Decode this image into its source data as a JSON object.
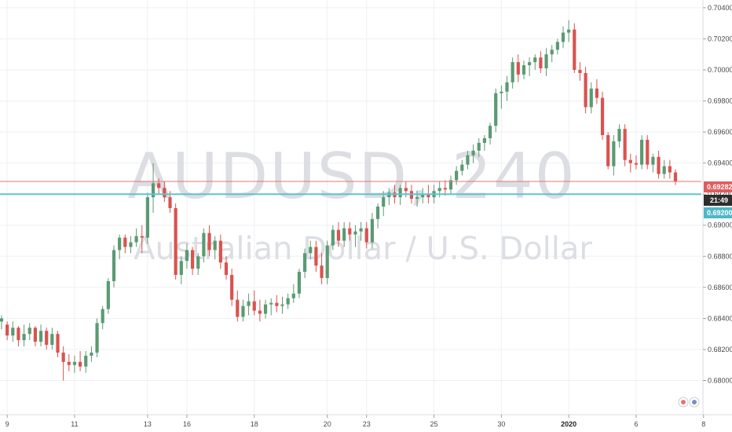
{
  "watermark": {
    "symbol": "AUDUSD, 240",
    "description": "Australian Dollar / U.S. Dollar"
  },
  "colors": {
    "up": "#5b9a73",
    "down": "#d9534f",
    "grid": "#eef0f3",
    "price_line": "#e57373",
    "support_line": "#5bc4d4",
    "axis_text": "#4a4a4a"
  },
  "price_tags": {
    "last_price": "0.69282",
    "countdown": "21:49",
    "level": "0.69200"
  },
  "chart_data": {
    "type": "candlestick",
    "title": "AUDUSD, 240",
    "subtitle": "Australian Dollar / U.S. Dollar",
    "ylim": [
      0.6778,
      0.7045
    ],
    "y_ticks": [
      "0.70400",
      "0.70200",
      "0.70000",
      "0.69800",
      "0.69600",
      "0.69400",
      "0.69200",
      "0.69000",
      "0.68800",
      "0.68600",
      "0.68400",
      "0.68200",
      "0.68000"
    ],
    "x_ticks": [
      {
        "label": "9",
        "index": 1
      },
      {
        "label": "11",
        "index": 13
      },
      {
        "label": "13",
        "index": 26
      },
      {
        "label": "16",
        "index": 33
      },
      {
        "label": "18",
        "index": 45
      },
      {
        "label": "20",
        "index": 58
      },
      {
        "label": "23",
        "index": 65
      },
      {
        "label": "25",
        "index": 77
      },
      {
        "label": "30",
        "index": 89
      },
      {
        "label": "2020",
        "index": 101,
        "bold": true
      },
      {
        "label": "6",
        "index": 113
      },
      {
        "label": "8",
        "index": 125
      }
    ],
    "horizontal_lines": [
      {
        "name": "last-price",
        "value": 0.69282
      },
      {
        "name": "support",
        "value": 0.692
      }
    ],
    "candles": [
      [
        0.6838,
        0.6842,
        0.6833,
        0.684
      ],
      [
        0.6836,
        0.6838,
        0.6826,
        0.6829
      ],
      [
        0.6829,
        0.6838,
        0.6825,
        0.6834
      ],
      [
        0.6834,
        0.6835,
        0.6822,
        0.6826
      ],
      [
        0.6826,
        0.6836,
        0.6822,
        0.683
      ],
      [
        0.683,
        0.6837,
        0.6826,
        0.6834
      ],
      [
        0.6834,
        0.6835,
        0.6822,
        0.6825
      ],
      [
        0.6825,
        0.6836,
        0.6822,
        0.6832
      ],
      [
        0.6832,
        0.6834,
        0.682,
        0.6823
      ],
      [
        0.6823,
        0.6834,
        0.682,
        0.683
      ],
      [
        0.683,
        0.6832,
        0.6815,
        0.6818
      ],
      [
        0.6818,
        0.6822,
        0.68,
        0.6812
      ],
      [
        0.6812,
        0.6817,
        0.6806,
        0.681
      ],
      [
        0.681,
        0.6816,
        0.6805,
        0.6812
      ],
      [
        0.6812,
        0.6819,
        0.6806,
        0.6809
      ],
      [
        0.6809,
        0.6819,
        0.6805,
        0.6816
      ],
      [
        0.6816,
        0.6822,
        0.6812,
        0.6818
      ],
      [
        0.6818,
        0.684,
        0.6815,
        0.6837
      ],
      [
        0.6837,
        0.6848,
        0.6833,
        0.6846
      ],
      [
        0.6846,
        0.6866,
        0.6843,
        0.6864
      ],
      [
        0.6864,
        0.6887,
        0.686,
        0.6884
      ],
      [
        0.6884,
        0.6894,
        0.6878,
        0.6892
      ],
      [
        0.6892,
        0.6894,
        0.6882,
        0.6886
      ],
      [
        0.6886,
        0.6893,
        0.6882,
        0.6889
      ],
      [
        0.6889,
        0.6898,
        0.6886,
        0.6893
      ],
      [
        0.6893,
        0.69,
        0.6882,
        0.6892
      ],
      [
        0.6892,
        0.6921,
        0.6888,
        0.6918
      ],
      [
        0.6918,
        0.694,
        0.6908,
        0.6927
      ],
      [
        0.6927,
        0.693,
        0.692,
        0.6924
      ],
      [
        0.6924,
        0.6928,
        0.6915,
        0.6918
      ],
      [
        0.6918,
        0.6922,
        0.6908,
        0.6911
      ],
      [
        0.6911,
        0.6914,
        0.6865,
        0.6868
      ],
      [
        0.6868,
        0.688,
        0.6862,
        0.6877
      ],
      [
        0.6877,
        0.6888,
        0.6872,
        0.6884
      ],
      [
        0.6884,
        0.6886,
        0.6868,
        0.6872
      ],
      [
        0.6872,
        0.6882,
        0.6868,
        0.688
      ],
      [
        0.688,
        0.6898,
        0.6876,
        0.6895
      ],
      [
        0.6895,
        0.69,
        0.688,
        0.6884
      ],
      [
        0.6884,
        0.6893,
        0.6878,
        0.689
      ],
      [
        0.689,
        0.6894,
        0.6872,
        0.6876
      ],
      [
        0.6876,
        0.688,
        0.6865,
        0.6868
      ],
      [
        0.6868,
        0.6872,
        0.6848,
        0.6852
      ],
      [
        0.6852,
        0.6858,
        0.6838,
        0.6841
      ],
      [
        0.6841,
        0.6852,
        0.6838,
        0.6848
      ],
      [
        0.6848,
        0.6856,
        0.6842,
        0.6851
      ],
      [
        0.6851,
        0.6858,
        0.6842,
        0.6845
      ],
      [
        0.6845,
        0.6852,
        0.6838,
        0.6843
      ],
      [
        0.6843,
        0.6852,
        0.684,
        0.6849
      ],
      [
        0.6849,
        0.6853,
        0.6842,
        0.685
      ],
      [
        0.685,
        0.6855,
        0.6844,
        0.6848
      ],
      [
        0.6848,
        0.6854,
        0.6843,
        0.6849
      ],
      [
        0.6849,
        0.6856,
        0.6846,
        0.6853
      ],
      [
        0.6853,
        0.6862,
        0.685,
        0.6856
      ],
      [
        0.6856,
        0.6872,
        0.6853,
        0.687
      ],
      [
        0.687,
        0.6885,
        0.6866,
        0.6882
      ],
      [
        0.6882,
        0.689,
        0.6878,
        0.6886
      ],
      [
        0.6886,
        0.689,
        0.687,
        0.6874
      ],
      [
        0.6874,
        0.6882,
        0.6862,
        0.6866
      ],
      [
        0.6866,
        0.689,
        0.6862,
        0.6887
      ],
      [
        0.6887,
        0.69,
        0.6884,
        0.6897
      ],
      [
        0.6897,
        0.6902,
        0.6886,
        0.689
      ],
      [
        0.689,
        0.6902,
        0.6886,
        0.6898
      ],
      [
        0.6898,
        0.6902,
        0.689,
        0.6894
      ],
      [
        0.6894,
        0.69,
        0.6886,
        0.6896
      ],
      [
        0.6896,
        0.6902,
        0.689,
        0.6898
      ],
      [
        0.6898,
        0.6902,
        0.6885,
        0.6889
      ],
      [
        0.6889,
        0.6908,
        0.6885,
        0.6904
      ],
      [
        0.6904,
        0.6914,
        0.6898,
        0.6912
      ],
      [
        0.6912,
        0.6922,
        0.6906,
        0.6918
      ],
      [
        0.6918,
        0.6924,
        0.6913,
        0.6921
      ],
      [
        0.6921,
        0.6926,
        0.6914,
        0.6918
      ],
      [
        0.6918,
        0.6926,
        0.6913,
        0.6924
      ],
      [
        0.6924,
        0.6928,
        0.6918,
        0.6922
      ],
      [
        0.6922,
        0.6926,
        0.6914,
        0.6917
      ],
      [
        0.6917,
        0.6922,
        0.6912,
        0.6918
      ],
      [
        0.6918,
        0.6924,
        0.6914,
        0.692
      ],
      [
        0.692,
        0.6926,
        0.6914,
        0.6918
      ],
      [
        0.6918,
        0.6926,
        0.6914,
        0.6922
      ],
      [
        0.6922,
        0.6928,
        0.6918,
        0.6924
      ],
      [
        0.6924,
        0.6929,
        0.6919,
        0.6923
      ],
      [
        0.6923,
        0.6932,
        0.692,
        0.6929
      ],
      [
        0.6929,
        0.6938,
        0.6926,
        0.6935
      ],
      [
        0.6935,
        0.6942,
        0.6932,
        0.6939
      ],
      [
        0.6939,
        0.6948,
        0.6936,
        0.6945
      ],
      [
        0.6945,
        0.6952,
        0.694,
        0.6948
      ],
      [
        0.6948,
        0.6956,
        0.6944,
        0.6953
      ],
      [
        0.6953,
        0.6958,
        0.6948,
        0.6956
      ],
      [
        0.6956,
        0.6966,
        0.6952,
        0.6964
      ],
      [
        0.6964,
        0.6988,
        0.696,
        0.6985
      ],
      [
        0.6985,
        0.699,
        0.6975,
        0.6986
      ],
      [
        0.6986,
        0.6996,
        0.698,
        0.6992
      ],
      [
        0.6992,
        0.7008,
        0.6988,
        0.7005
      ],
      [
        0.7005,
        0.701,
        0.6992,
        0.6997
      ],
      [
        0.6997,
        0.7006,
        0.6994,
        0.7003
      ],
      [
        0.7003,
        0.7008,
        0.6996,
        0.7005
      ],
      [
        0.7005,
        0.701,
        0.7,
        0.7008
      ],
      [
        0.7008,
        0.7012,
        0.6998,
        0.7001
      ],
      [
        0.7001,
        0.7014,
        0.6996,
        0.701
      ],
      [
        0.701,
        0.7016,
        0.7005,
        0.7013
      ],
      [
        0.7013,
        0.702,
        0.701,
        0.7018
      ],
      [
        0.7018,
        0.7028,
        0.7014,
        0.7024
      ],
      [
        0.7024,
        0.7032,
        0.7018,
        0.7026
      ],
      [
        0.7026,
        0.703,
        0.6998,
        0.7
      ],
      [
        0.7,
        0.7005,
        0.6993,
        0.6998
      ],
      [
        0.6998,
        0.7002,
        0.6972,
        0.6976
      ],
      [
        0.6976,
        0.6992,
        0.6972,
        0.6988
      ],
      [
        0.6988,
        0.6994,
        0.6978,
        0.6982
      ],
      [
        0.6982,
        0.6986,
        0.6955,
        0.6958
      ],
      [
        0.6958,
        0.696,
        0.6936,
        0.6938
      ],
      [
        0.6938,
        0.6958,
        0.6932,
        0.6954
      ],
      [
        0.6954,
        0.6965,
        0.695,
        0.6962
      ],
      [
        0.6962,
        0.6965,
        0.6938,
        0.6942
      ],
      [
        0.6942,
        0.6946,
        0.6934,
        0.694
      ],
      [
        0.694,
        0.6945,
        0.6936,
        0.6939
      ],
      [
        0.6939,
        0.6958,
        0.6936,
        0.6955
      ],
      [
        0.6955,
        0.6958,
        0.6936,
        0.6939
      ],
      [
        0.6939,
        0.6946,
        0.6934,
        0.6944
      ],
      [
        0.6944,
        0.6948,
        0.693,
        0.6933
      ],
      [
        0.6933,
        0.6942,
        0.693,
        0.6938
      ],
      [
        0.6938,
        0.6942,
        0.693,
        0.6934
      ],
      [
        0.6934,
        0.6936,
        0.6926,
        0.6928
      ]
    ]
  }
}
